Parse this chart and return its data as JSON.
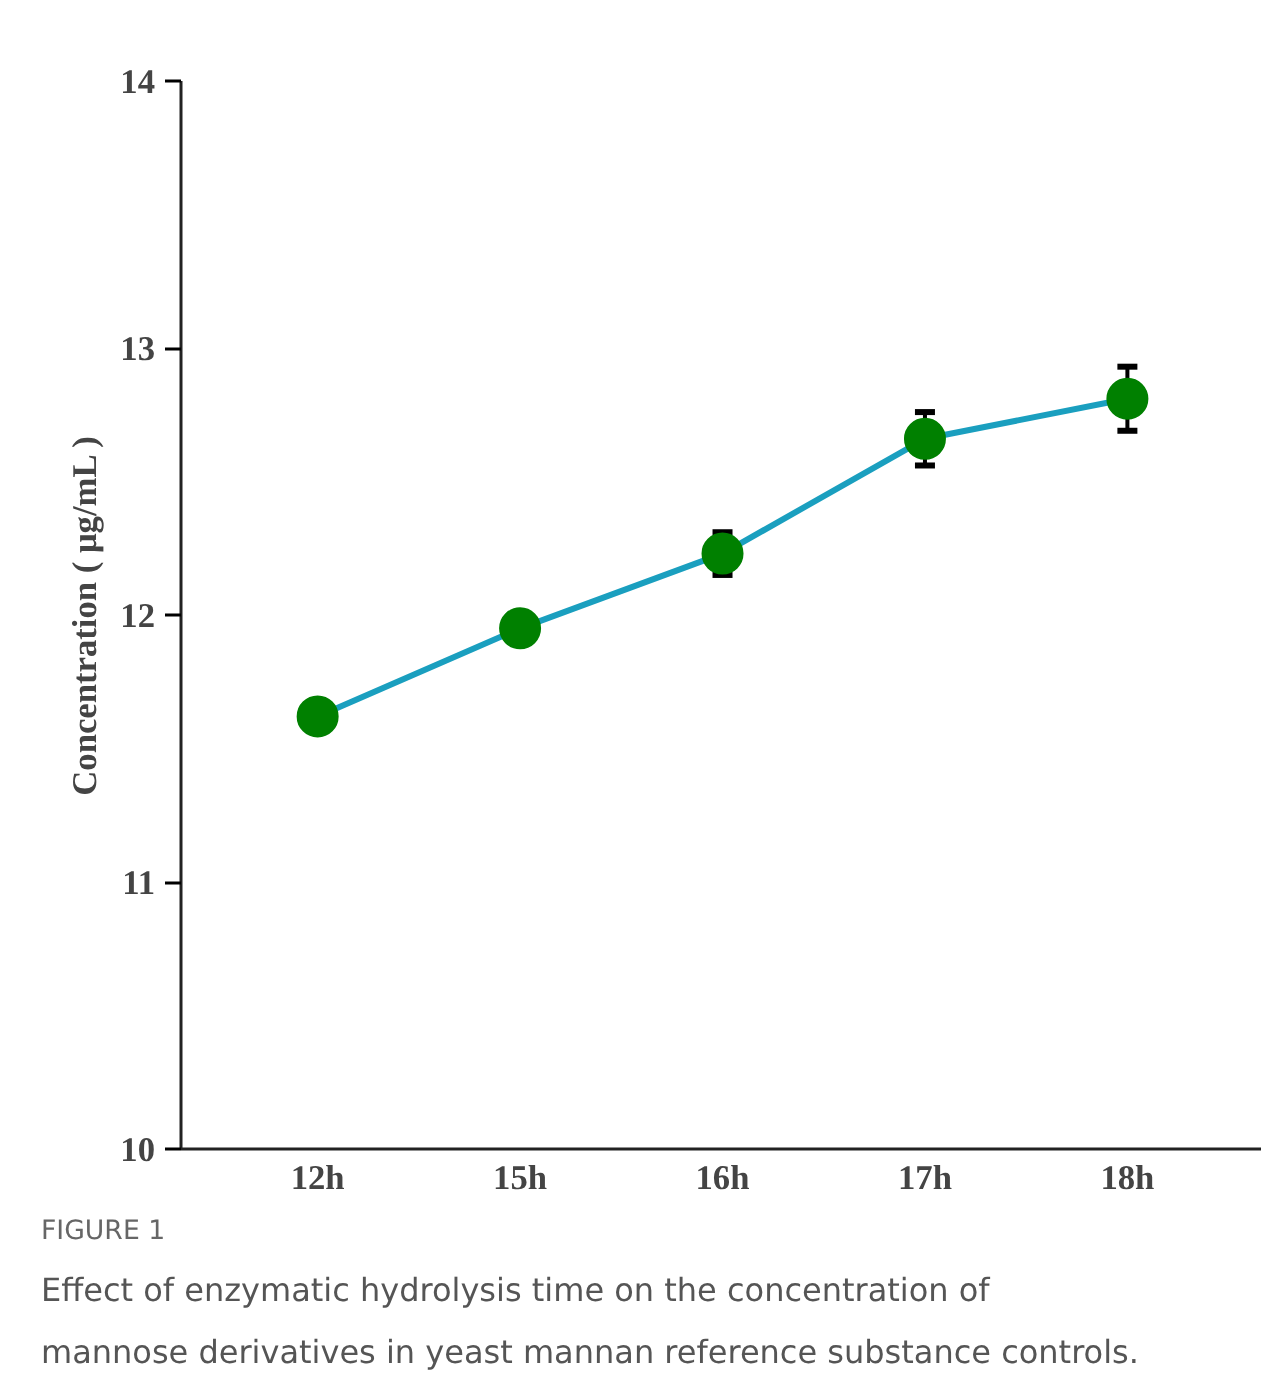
{
  "chart_data": {
    "type": "line",
    "ylabel": "Concentration ( μg/mL )",
    "categories": [
      "12h",
      "15h",
      "16h",
      "17h",
      "18h"
    ],
    "series": [
      {
        "color": "#1a9fbf",
        "colors": [
          "#008000",
          "#008000",
          "#008000",
          "#008000",
          "#008000"
        ],
        "values": [
          11.62,
          11.95,
          12.23,
          12.66,
          12.81
        ],
        "errors": [
          null,
          null,
          0.08,
          0.1,
          0.12
        ]
      }
    ],
    "ylim": [
      10,
      14
    ],
    "yticks": [
      10,
      11,
      12,
      13,
      14
    ],
    "grid": false,
    "marker": "circle",
    "line_style": "solid",
    "annotations": [
      "FIGURE 1",
      "Effect of enzymatic hydrolysis time on the concentration of mannose derivatives in yeast mannan reference substance controls."
    ]
  }
}
